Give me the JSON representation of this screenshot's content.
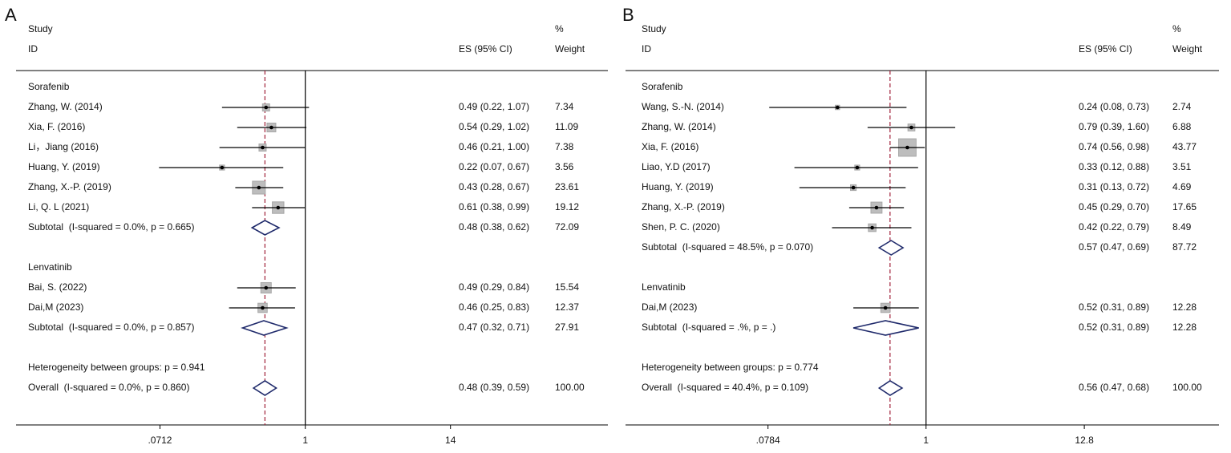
{
  "chart_data": [
    {
      "type": "forest",
      "panel": "A",
      "headers": {
        "study": "Study",
        "id": "ID",
        "es": "ES (95% CI)",
        "pct": "%",
        "weight": "Weight"
      },
      "xscale": "log",
      "xlim": [
        0.0052,
        245
      ],
      "xticks": [
        {
          "value": 0.0712,
          "label": ".0712"
        },
        1,
        14
      ],
      "rows": [
        {
          "kind": "group",
          "label": "Sorafenib"
        },
        {
          "kind": "study",
          "label": "Zhang, W. (2014)",
          "es": 0.49,
          "lo": 0.22,
          "hi": 1.07,
          "es_label": "0.49 (0.22, 1.07)",
          "weight": 7.34
        },
        {
          "kind": "study",
          "label": "Xia, F. (2016)",
          "es": 0.54,
          "lo": 0.29,
          "hi": 1.02,
          "es_label": "0.54 (0.29, 1.02)",
          "weight": 11.09
        },
        {
          "kind": "study",
          "label": "Li，Jiang (2016)",
          "es": 0.46,
          "lo": 0.21,
          "hi": 1.0,
          "es_label": "0.46 (0.21, 1.00)",
          "weight": 7.38
        },
        {
          "kind": "study",
          "label": "Huang, Y. (2019)",
          "es": 0.22,
          "lo": 0.07,
          "hi": 0.67,
          "es_label": "0.22 (0.07, 0.67)",
          "weight": 3.56
        },
        {
          "kind": "study",
          "label": "Zhang, X.-P. (2019)",
          "es": 0.43,
          "lo": 0.28,
          "hi": 0.67,
          "es_label": "0.43 (0.28, 0.67)",
          "weight": 23.61
        },
        {
          "kind": "study",
          "label": "Li, Q. L (2021)",
          "es": 0.61,
          "lo": 0.38,
          "hi": 0.99,
          "es_label": "0.61 (0.38, 0.99)",
          "weight": 19.12
        },
        {
          "kind": "subtotal",
          "label": "Subtotal  (I-squared = 0.0%, p = 0.665)",
          "es": 0.48,
          "lo": 0.38,
          "hi": 0.62,
          "es_label": "0.48 (0.38, 0.62)",
          "weight": 72.09
        },
        {
          "kind": "group",
          "label": "Lenvatinib"
        },
        {
          "kind": "study",
          "label": "Bai, S. (2022)",
          "es": 0.49,
          "lo": 0.29,
          "hi": 0.84,
          "es_label": "0.49 (0.29, 0.84)",
          "weight": 15.54
        },
        {
          "kind": "study",
          "label": "Dai,M (2023)",
          "es": 0.46,
          "lo": 0.25,
          "hi": 0.83,
          "es_label": "0.46 (0.25, 0.83)",
          "weight": 12.37
        },
        {
          "kind": "subtotal",
          "label": "Subtotal  (I-squared = 0.0%, p = 0.857)",
          "es": 0.47,
          "lo": 0.32,
          "hi": 0.71,
          "es_label": "0.47 (0.32, 0.71)",
          "weight": 27.91
        },
        {
          "kind": "note",
          "label": "Heterogeneity between groups: p = 0.941"
        },
        {
          "kind": "overall",
          "label": "Overall  (I-squared = 0.0%, p = 0.860)",
          "es": 0.48,
          "lo": 0.39,
          "hi": 0.59,
          "es_label": "0.48 (0.39, 0.59)",
          "weight": {
            "value": 100,
            "label": "100.00"
          }
        }
      ]
    },
    {
      "type": "forest",
      "panel": "B",
      "headers": {
        "study": "Study",
        "id": "ID",
        "es": "ES (95% CI)",
        "pct": "%",
        "weight": "Weight"
      },
      "xscale": "log",
      "xlim": [
        0.0079,
        112
      ],
      "xticks": [
        {
          "value": 0.0784,
          "label": ".0784"
        },
        1,
        12.8
      ],
      "rows": [
        {
          "kind": "group",
          "label": "Sorafenib"
        },
        {
          "kind": "study",
          "label": "Wang, S.-N. (2014)",
          "es": 0.24,
          "lo": 0.08,
          "hi": 0.73,
          "es_label": "0.24 (0.08, 0.73)",
          "weight": 2.74
        },
        {
          "kind": "study",
          "label": "Zhang, W. (2014)",
          "es": 0.79,
          "lo": 0.39,
          "hi": 1.6,
          "es_label": "0.79 (0.39, 1.60)",
          "weight": 6.88
        },
        {
          "kind": "study",
          "label": "Xia, F. (2016)",
          "es": 0.74,
          "lo": 0.56,
          "hi": 0.98,
          "es_label": "0.74 (0.56, 0.98)",
          "weight": 43.77
        },
        {
          "kind": "study",
          "label": "Liao, Y.D (2017)",
          "es": 0.33,
          "lo": 0.12,
          "hi": 0.88,
          "es_label": "0.33 (0.12, 0.88)",
          "weight": 3.51
        },
        {
          "kind": "study",
          "label": "Huang, Y. (2019)",
          "es": 0.31,
          "lo": 0.13,
          "hi": 0.72,
          "es_label": "0.31 (0.13, 0.72)",
          "weight": 4.69
        },
        {
          "kind": "study",
          "label": "Zhang, X.-P. (2019)",
          "es": 0.45,
          "lo": 0.29,
          "hi": 0.7,
          "es_label": "0.45 (0.29, 0.70)",
          "weight": 17.65
        },
        {
          "kind": "study",
          "label": "Shen, P. C. (2020)",
          "es": 0.42,
          "lo": 0.22,
          "hi": 0.79,
          "es_label": "0.42 (0.22, 0.79)",
          "weight": 8.49
        },
        {
          "kind": "subtotal",
          "label": "Subtotal  (I-squared = 48.5%, p = 0.070)",
          "es": 0.57,
          "lo": 0.47,
          "hi": 0.69,
          "es_label": "0.57 (0.47, 0.69)",
          "weight": 87.72
        },
        {
          "kind": "group",
          "label": "Lenvatinib"
        },
        {
          "kind": "study",
          "label": "Dai,M (2023)",
          "es": 0.52,
          "lo": 0.31,
          "hi": 0.89,
          "es_label": "0.52 (0.31, 0.89)",
          "weight": 12.28
        },
        {
          "kind": "subtotal",
          "label": "Subtotal  (I-squared = .%, p = .)",
          "es": 0.52,
          "lo": 0.31,
          "hi": 0.89,
          "es_label": "0.52 (0.31, 0.89)",
          "weight": 12.28
        },
        {
          "kind": "note",
          "label": "Heterogeneity between groups: p = 0.774"
        },
        {
          "kind": "overall",
          "label": "Overall  (I-squared = 40.4%, p = 0.109)",
          "es": 0.56,
          "lo": 0.47,
          "hi": 0.68,
          "es_label": "0.56 (0.47, 0.68)",
          "weight": {
            "value": 100,
            "label": "100.00"
          }
        }
      ]
    }
  ]
}
